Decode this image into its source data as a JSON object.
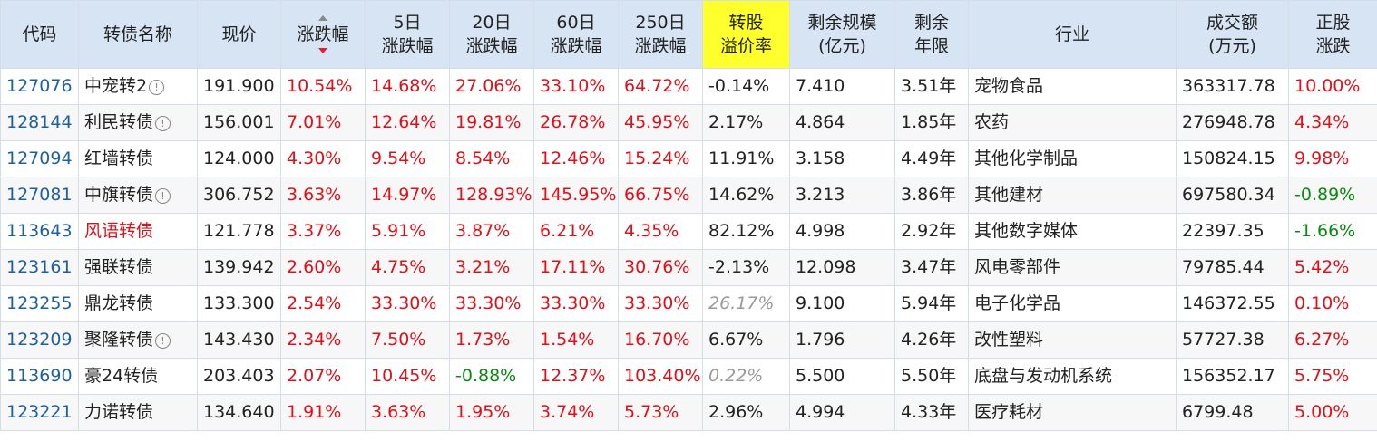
{
  "headers": [
    [
      "代码"
    ],
    [
      "转债名称"
    ],
    [
      "现价"
    ],
    [
      "涨跌幅"
    ],
    [
      "5日",
      "涨跌幅"
    ],
    [
      "20日",
      "涨跌幅"
    ],
    [
      "60日",
      "涨跌幅"
    ],
    [
      "250日",
      "涨跌幅"
    ],
    [
      "转股",
      "溢价率"
    ],
    [
      "剩余规模",
      "(亿元)"
    ],
    [
      "剩余",
      "年限"
    ],
    [
      "行业"
    ],
    [
      "成交额",
      "(万元)"
    ],
    [
      "正股",
      "涨跌"
    ]
  ],
  "colors": {
    "red": "#e0101a",
    "green": "#0a8a12",
    "code": "#1f5fa0",
    "header_bg": "#d6e4f4",
    "highlight": "#ffff2e"
  },
  "rows": [
    {
      "code": "127076",
      "name": "中宠转2",
      "info": true,
      "name_red": false,
      "price": "191.900",
      "chg": "10.54%",
      "d5": "14.68%",
      "d20": "27.06%",
      "d60": "33.10%",
      "d250": "64.72%",
      "prem": "-0.14%",
      "prem_grey": false,
      "scale": "7.410",
      "years": "3.51年",
      "industry": "宠物食品",
      "amount": "363317.78",
      "stock": "10.00%"
    },
    {
      "code": "128144",
      "name": "利民转债",
      "info": true,
      "name_red": false,
      "price": "156.001",
      "chg": "7.01%",
      "d5": "12.64%",
      "d20": "19.81%",
      "d60": "26.78%",
      "d250": "45.95%",
      "prem": "2.17%",
      "prem_grey": false,
      "scale": "4.864",
      "years": "1.85年",
      "industry": "农药",
      "amount": "276948.78",
      "stock": "4.34%"
    },
    {
      "code": "127094",
      "name": "红墙转债",
      "info": false,
      "name_red": false,
      "price": "124.000",
      "chg": "4.30%",
      "d5": "9.54%",
      "d20": "8.54%",
      "d60": "12.46%",
      "d250": "15.24%",
      "prem": "11.91%",
      "prem_grey": false,
      "scale": "3.158",
      "years": "4.49年",
      "industry": "其他化学制品",
      "amount": "150824.15",
      "stock": "9.98%"
    },
    {
      "code": "127081",
      "name": "中旗转债",
      "info": true,
      "name_red": false,
      "price": "306.752",
      "chg": "3.63%",
      "d5": "14.97%",
      "d20": "128.93%",
      "d60": "145.95%",
      "d250": "66.75%",
      "prem": "14.62%",
      "prem_grey": false,
      "scale": "3.213",
      "years": "3.86年",
      "industry": "其他建材",
      "amount": "697580.34",
      "stock": "-0.89%"
    },
    {
      "code": "113643",
      "name": "风语转债",
      "info": false,
      "name_red": true,
      "price": "121.778",
      "chg": "3.37%",
      "d5": "5.91%",
      "d20": "3.87%",
      "d60": "6.21%",
      "d250": "4.35%",
      "prem": "82.12%",
      "prem_grey": false,
      "scale": "4.998",
      "years": "2.92年",
      "industry": "其他数字媒体",
      "amount": "22397.35",
      "stock": "-1.66%"
    },
    {
      "code": "123161",
      "name": "强联转债",
      "info": false,
      "name_red": false,
      "price": "139.942",
      "chg": "2.60%",
      "d5": "4.75%",
      "d20": "3.21%",
      "d60": "17.11%",
      "d250": "30.76%",
      "prem": "-2.13%",
      "prem_grey": false,
      "scale": "12.098",
      "years": "3.47年",
      "industry": "风电零部件",
      "amount": "79785.44",
      "stock": "5.42%"
    },
    {
      "code": "123255",
      "name": "鼎龙转债",
      "info": false,
      "name_red": false,
      "price": "133.300",
      "chg": "2.54%",
      "d5": "33.30%",
      "d20": "33.30%",
      "d60": "33.30%",
      "d250": "33.30%",
      "prem": "26.17%",
      "prem_grey": true,
      "scale": "9.100",
      "years": "5.94年",
      "industry": "电子化学品",
      "amount": "146372.55",
      "stock": "0.10%"
    },
    {
      "code": "123209",
      "name": "聚隆转债",
      "info": true,
      "name_red": false,
      "price": "143.430",
      "chg": "2.34%",
      "d5": "7.50%",
      "d20": "1.73%",
      "d60": "1.54%",
      "d250": "16.70%",
      "prem": "6.67%",
      "prem_grey": false,
      "scale": "1.796",
      "years": "4.26年",
      "industry": "改性塑料",
      "amount": "57727.38",
      "stock": "6.27%"
    },
    {
      "code": "113690",
      "name": "豪24转债",
      "info": false,
      "name_red": false,
      "price": "203.403",
      "chg": "2.07%",
      "d5": "10.45%",
      "d20": "-0.88%",
      "d60": "12.37%",
      "d250": "103.40%",
      "prem": "0.22%",
      "prem_grey": true,
      "scale": "5.500",
      "years": "5.50年",
      "industry": "底盘与发动机系统",
      "amount": "156352.17",
      "stock": "5.75%"
    },
    {
      "code": "123221",
      "name": "力诺转债",
      "info": false,
      "name_red": false,
      "price": "134.640",
      "chg": "1.91%",
      "d5": "3.63%",
      "d20": "1.95%",
      "d60": "3.74%",
      "d250": "5.73%",
      "prem": "2.96%",
      "prem_grey": false,
      "scale": "4.994",
      "years": "4.33年",
      "industry": "医疗耗材",
      "amount": "6799.48",
      "stock": "5.00%"
    }
  ]
}
